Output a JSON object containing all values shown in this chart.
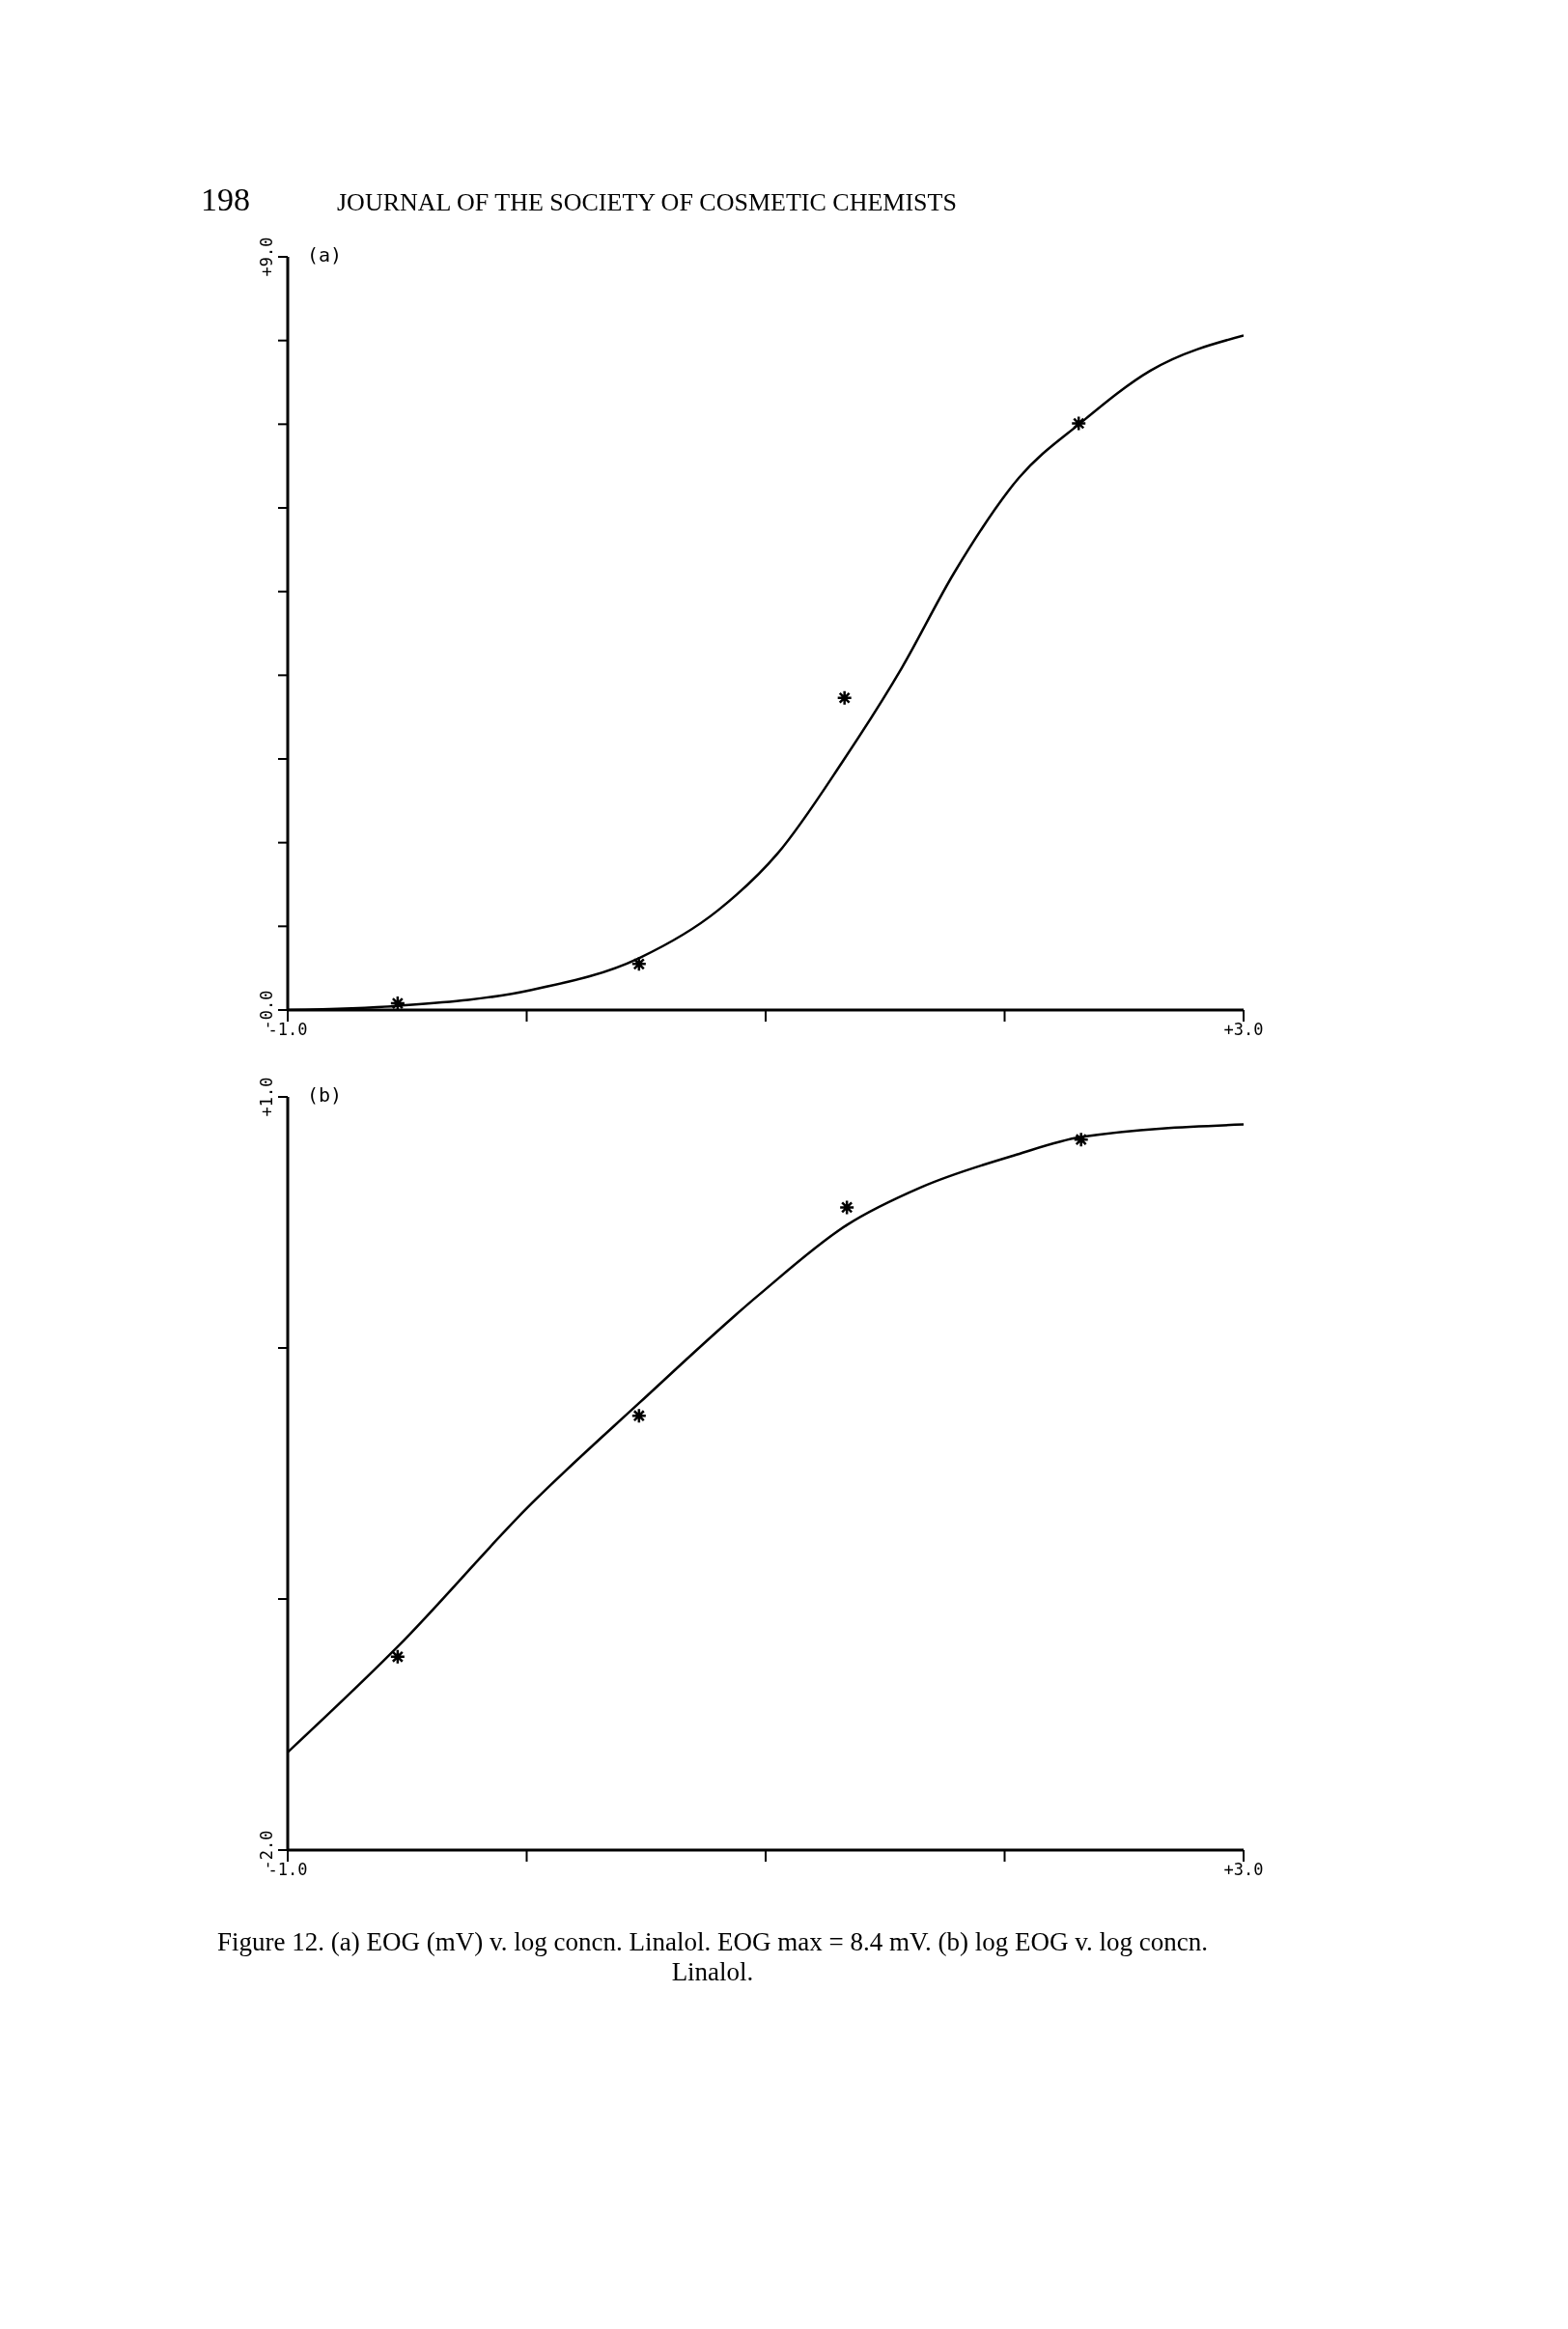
{
  "chart_data": [
    {
      "type": "line",
      "title": "(a)",
      "annotations": [
        "198",
        "JOURNAL OF THE SOCIETY OF COSMETIC CHEMISTS"
      ],
      "xlim": [
        -1,
        3
      ],
      "ylim": [
        0,
        9
      ],
      "xticks": [
        {
          "value": -1,
          "label": "-1.0"
        },
        {
          "value": 0,
          "label": null
        },
        {
          "value": 1,
          "label": null
        },
        {
          "value": 2,
          "label": null
        },
        {
          "value": 3,
          "label": "+3.0"
        }
      ],
      "yticks": [
        {
          "value": 0,
          "label": "-0.0"
        },
        {
          "value": 1,
          "label": null
        },
        {
          "value": 2,
          "label": null
        },
        {
          "value": 3,
          "label": null
        },
        {
          "value": 4,
          "label": null
        },
        {
          "value": 5,
          "label": null
        },
        {
          "value": 6,
          "label": null
        },
        {
          "value": 7,
          "label": null
        },
        {
          "value": 8,
          "label": null
        },
        {
          "value": 9,
          "label": "+9.0"
        }
      ],
      "grid": false,
      "series": [
        {
          "color": "#000000",
          "marker": "none",
          "line_style": "solid",
          "x": [
            -1,
            -0.54,
            0.02,
            0.47,
            0.8,
            1.05,
            1.32,
            1.57,
            1.79,
            2.06,
            2.32,
            2.61,
            3
          ],
          "values": [
            0,
            0.05,
            0.24,
            0.62,
            1.19,
            1.87,
            2.96,
            4.09,
            5.23,
            6.36,
            7.02,
            7.64,
            8.06
          ]
        },
        {
          "type": "scatter",
          "color": "#000000",
          "marker": "cross",
          "x": [
            -0.54,
            0.47,
            1.33,
            2.31
          ],
          "values": [
            0.08,
            0.55,
            3.73,
            7.01
          ]
        }
      ]
    },
    {
      "type": "line",
      "title": "(b)",
      "annotations": [
        "Figure 12. (a) EOG (mV) v. log concn. Linalol. EOG max = 8.4 mV. (b) log EOG v. log concn. Linalol."
      ],
      "xlim": [
        -1,
        3
      ],
      "ylim": [
        -2,
        1
      ],
      "xticks": [
        {
          "value": -1,
          "label": "-1.0"
        },
        {
          "value": 0,
          "label": null
        },
        {
          "value": 1,
          "label": null
        },
        {
          "value": 2,
          "label": null
        },
        {
          "value": 3,
          "label": "+3.0"
        }
      ],
      "yticks": [
        {
          "value": -2,
          "label": "-2.0"
        },
        {
          "value": -1,
          "label": null
        },
        {
          "value": 0,
          "label": null
        },
        {
          "value": 1,
          "label": "+1.0"
        }
      ],
      "grid": false,
      "series": [
        {
          "color": "#000000",
          "marker": "none",
          "line_style": "solid",
          "x": [
            -1,
            -0.54,
            0.02,
            0.47,
            0.97,
            1.34,
            1.65,
            2.05,
            2.32,
            3
          ],
          "values": [
            -1.61,
            -1.19,
            -0.62,
            -0.22,
            0.21,
            0.49,
            0.64,
            0.77,
            0.84,
            0.89
          ]
        },
        {
          "type": "scatter",
          "color": "#000000",
          "marker": "cross",
          "x": [
            -0.54,
            0.47,
            1.34,
            2.32
          ],
          "values": [
            -1.23,
            -0.27,
            0.56,
            0.83
          ]
        }
      ]
    }
  ]
}
